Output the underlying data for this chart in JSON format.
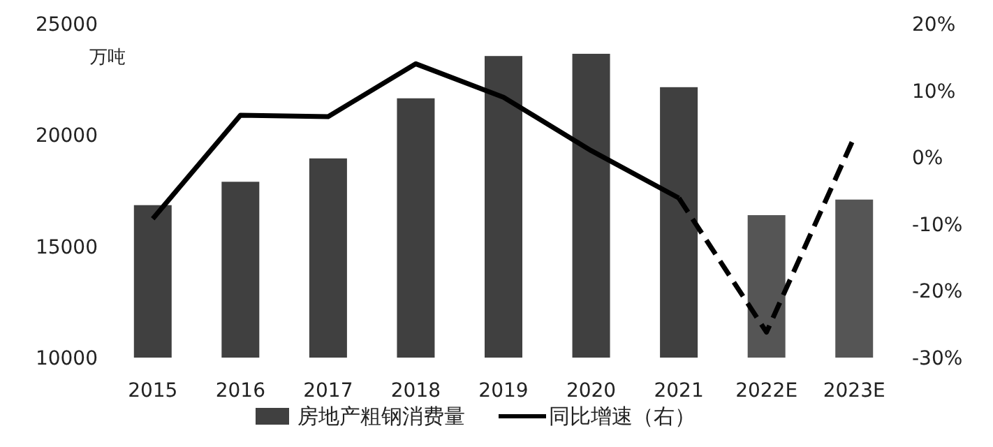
{
  "chart_data": {
    "type": "bar",
    "ylabel": "万吨",
    "categories": [
      "2015",
      "2016",
      "2017",
      "2018",
      "2019",
      "2020",
      "2021",
      "2022E",
      "2023E"
    ],
    "series": [
      {
        "name": "房地产粗钢消费量",
        "type": "bar",
        "colors": [
          "#404040",
          "#404040",
          "#404040",
          "#404040",
          "#404040",
          "#404040",
          "#404040",
          "#555555",
          "#555555"
        ],
        "values": [
          16850,
          17900,
          18950,
          21650,
          23550,
          23650,
          22150,
          16400,
          17100
        ]
      },
      {
        "name": "同比增速（右）",
        "type": "line",
        "axis": "y2",
        "color": "#000000",
        "line_style": "solid",
        "values": [
          -9.2,
          6.3,
          6.1,
          14.0,
          9.0,
          1.0,
          -6.1,
          null,
          null
        ]
      },
      {
        "type": "line",
        "axis": "y2",
        "color": "#000000",
        "line_style": "dashed",
        "values": [
          null,
          null,
          null,
          null,
          null,
          null,
          -6.1,
          -26.2,
          3.0
        ]
      }
    ],
    "ylim": [
      10000,
      25000
    ],
    "yticks": [
      10000,
      15000,
      20000,
      25000
    ],
    "y2lim": [
      -30,
      20
    ],
    "y2ticks": [
      {
        "value": -30,
        "label": "-30%"
      },
      {
        "value": -20,
        "label": "-20%"
      },
      {
        "value": -10,
        "label": "-10%"
      },
      {
        "value": 0,
        "label": "0%"
      },
      {
        "value": 10,
        "label": "10%"
      },
      {
        "value": 20,
        "label": "20%"
      }
    ],
    "legend": "bottom"
  }
}
